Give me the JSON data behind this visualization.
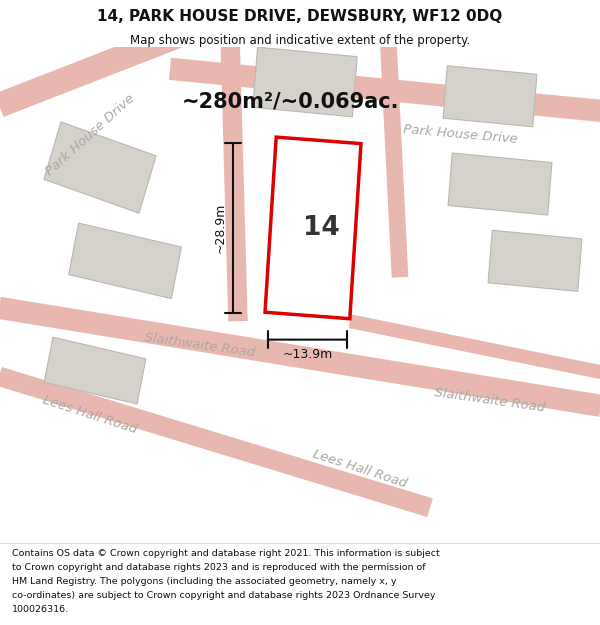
{
  "title": "14, PARK HOUSE DRIVE, DEWSBURY, WF12 0DQ",
  "subtitle": "Map shows position and indicative extent of the property.",
  "area_label": "~280m²/~0.069ac.",
  "property_number": "14",
  "dim_height": "~28.9m",
  "dim_width": "~13.9m",
  "copyright_lines": [
    "Contains OS data © Crown copyright and database right 2021. This information is subject",
    "to Crown copyright and database rights 2023 and is reproduced with the permission of",
    "HM Land Registry. The polygons (including the associated geometry, namely x, y",
    "co-ordinates) are subject to Crown copyright and database rights 2023 Ordnance Survey",
    "100026316."
  ],
  "map_bg": "#f0eeeb",
  "road_color": "#e8b8b0",
  "building_color": "#d5d2cc",
  "building_edge": "#bbb8b2",
  "property_color": "#ffffff",
  "property_edge": "#dd0000",
  "street_label_color": "#aaa8a0",
  "dim_color": "#111111",
  "title_color": "#111111",
  "copyright_color": "#111111"
}
